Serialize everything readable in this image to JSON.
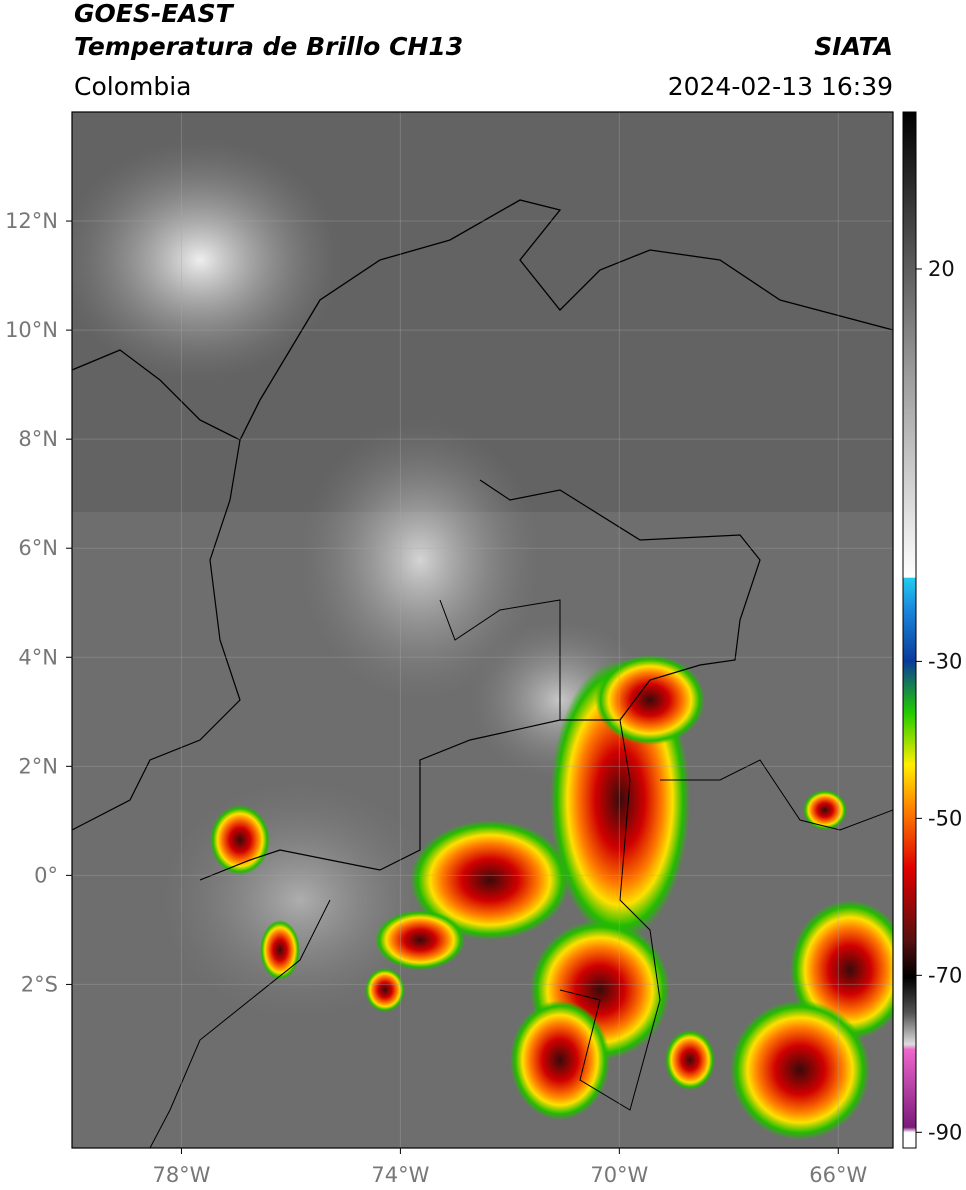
{
  "chart_data": {
    "type": "map",
    "title": "GOES-EAST",
    "subtitle": "Temperatura de Brillo CH13",
    "source": "SIATA",
    "region": "Colombia",
    "datetime": "2024-02-13 16:39",
    "xlim": [
      -80,
      -65
    ],
    "ylim": [
      -5,
      14
    ],
    "xticks": [
      {
        "value": -78,
        "label": "78°W"
      },
      {
        "value": -74,
        "label": "74°W"
      },
      {
        "value": -70,
        "label": "70°W"
      },
      {
        "value": -66,
        "label": "66°W"
      }
    ],
    "yticks": [
      {
        "value": 12,
        "label": "12°N"
      },
      {
        "value": 10,
        "label": "10°N"
      },
      {
        "value": 8,
        "label": "8°N"
      },
      {
        "value": 6,
        "label": "6°N"
      },
      {
        "value": 4,
        "label": "4°N"
      },
      {
        "value": 2,
        "label": "2°N"
      },
      {
        "value": 0,
        "label": "0°"
      },
      {
        "value": -2,
        "label": "2°S"
      }
    ],
    "grid": true,
    "colorbar": {
      "lim": [
        -92,
        40
      ],
      "ticks": [
        20,
        -30,
        -50,
        -70,
        -90
      ]
    }
  }
}
